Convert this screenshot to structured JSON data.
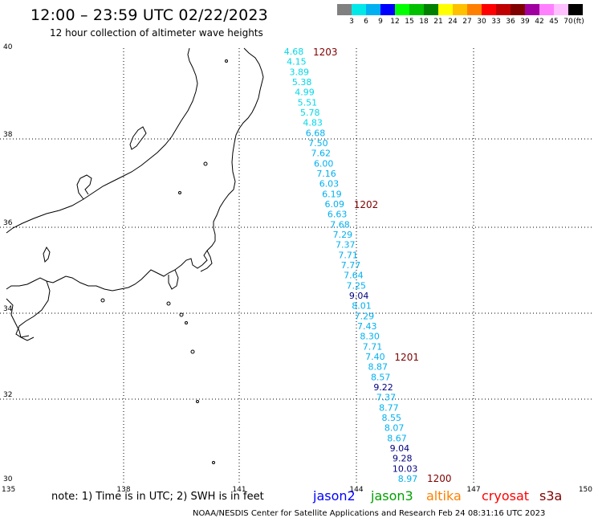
{
  "title": "12:00 – 23:59 UTC 02/22/2023",
  "subtitle": "12 hour collection of altimeter wave heights",
  "scale": {
    "labels": [
      "3",
      "6",
      "9",
      "12",
      "15",
      "18",
      "21",
      "24",
      "27",
      "30",
      "33",
      "36",
      "39",
      "42",
      "45",
      "70"
    ],
    "unit": "(ft)",
    "colors": [
      "#808080",
      "#00e8e8",
      "#00b0f0",
      "#0000ff",
      "#00ff00",
      "#00c000",
      "#008000",
      "#ffff00",
      "#ffc000",
      "#ff8000",
      "#ff0000",
      "#c00000",
      "#800000",
      "#a000a0",
      "#ff80ff",
      "#ffc0ff",
      "#000000"
    ]
  },
  "axes": {
    "lat_labels": [
      "40",
      "38",
      "36",
      "34",
      "32",
      "30"
    ],
    "lon_labels": [
      "135",
      "138",
      "141",
      "144",
      "147",
      "150"
    ]
  },
  "track": {
    "times": [
      "1203",
      "1202",
      "1201",
      "1200"
    ],
    "time_color": "#800000",
    "points": [
      {
        "v": "4.68",
        "c": "#00d8e8"
      },
      {
        "v": "4.15",
        "c": "#00d8e8"
      },
      {
        "v": "3.89",
        "c": "#00d8e8"
      },
      {
        "v": "5.38",
        "c": "#00d8e8"
      },
      {
        "v": "4.99",
        "c": "#00d8e8"
      },
      {
        "v": "5.51",
        "c": "#00d8e8"
      },
      {
        "v": "5.78",
        "c": "#00d8e8"
      },
      {
        "v": "4.83",
        "c": "#00d8e8"
      },
      {
        "v": "6.68",
        "c": "#00b0f0"
      },
      {
        "v": "7.50",
        "c": "#00b0f0"
      },
      {
        "v": "7.62",
        "c": "#00b0f0"
      },
      {
        "v": "6.00",
        "c": "#00b0f0"
      },
      {
        "v": "7.16",
        "c": "#00b0f0"
      },
      {
        "v": "6.03",
        "c": "#00b0f0"
      },
      {
        "v": "6.19",
        "c": "#00b0f0"
      },
      {
        "v": "6.09",
        "c": "#00b0f0"
      },
      {
        "v": "6.63",
        "c": "#00b0f0"
      },
      {
        "v": "7.68",
        "c": "#00b0f0"
      },
      {
        "v": "7.29",
        "c": "#00b0f0"
      },
      {
        "v": "7.37",
        "c": "#00b0f0"
      },
      {
        "v": "7.71",
        "c": "#00b0f0"
      },
      {
        "v": "7.77",
        "c": "#00b0f0"
      },
      {
        "v": "7.64",
        "c": "#00b0f0"
      },
      {
        "v": "7.25",
        "c": "#00b0f0"
      },
      {
        "v": "9.04",
        "c": "#000080"
      },
      {
        "v": "8.01",
        "c": "#00b0f0"
      },
      {
        "v": "7.29",
        "c": "#00b0f0"
      },
      {
        "v": "7.43",
        "c": "#00b0f0"
      },
      {
        "v": "8.30",
        "c": "#00b0f0"
      },
      {
        "v": "7.71",
        "c": "#00b0f0"
      },
      {
        "v": "7.40",
        "c": "#00b0f0"
      },
      {
        "v": "8.87",
        "c": "#00b0f0"
      },
      {
        "v": "8.57",
        "c": "#00b0f0"
      },
      {
        "v": "9.22",
        "c": "#000080"
      },
      {
        "v": "7.37",
        "c": "#00b0f0"
      },
      {
        "v": "8.77",
        "c": "#00b0f0"
      },
      {
        "v": "8.55",
        "c": "#00b0f0"
      },
      {
        "v": "8.07",
        "c": "#00b0f0"
      },
      {
        "v": "8.67",
        "c": "#00b0f0"
      },
      {
        "v": "9.04",
        "c": "#000080"
      },
      {
        "v": "9.28",
        "c": "#000080"
      },
      {
        "v": "10.03",
        "c": "#000080"
      },
      {
        "v": "8.97",
        "c": "#00b0f0"
      }
    ]
  },
  "note": "note: 1) Time is in UTC; 2) SWH is in feet",
  "legend": [
    {
      "label": "jason2",
      "color": "#0000ff"
    },
    {
      "label": "jason3",
      "color": "#00a000"
    },
    {
      "label": "altika",
      "color": "#ff8000"
    },
    {
      "label": "cryosat",
      "color": "#ff0000"
    },
    {
      "label": "s3a",
      "color": "#800000"
    }
  ],
  "footer": "NOAA/NESDIS Center for Satellite Applications and Research    Feb 24 08:31:16 UTC 2023"
}
